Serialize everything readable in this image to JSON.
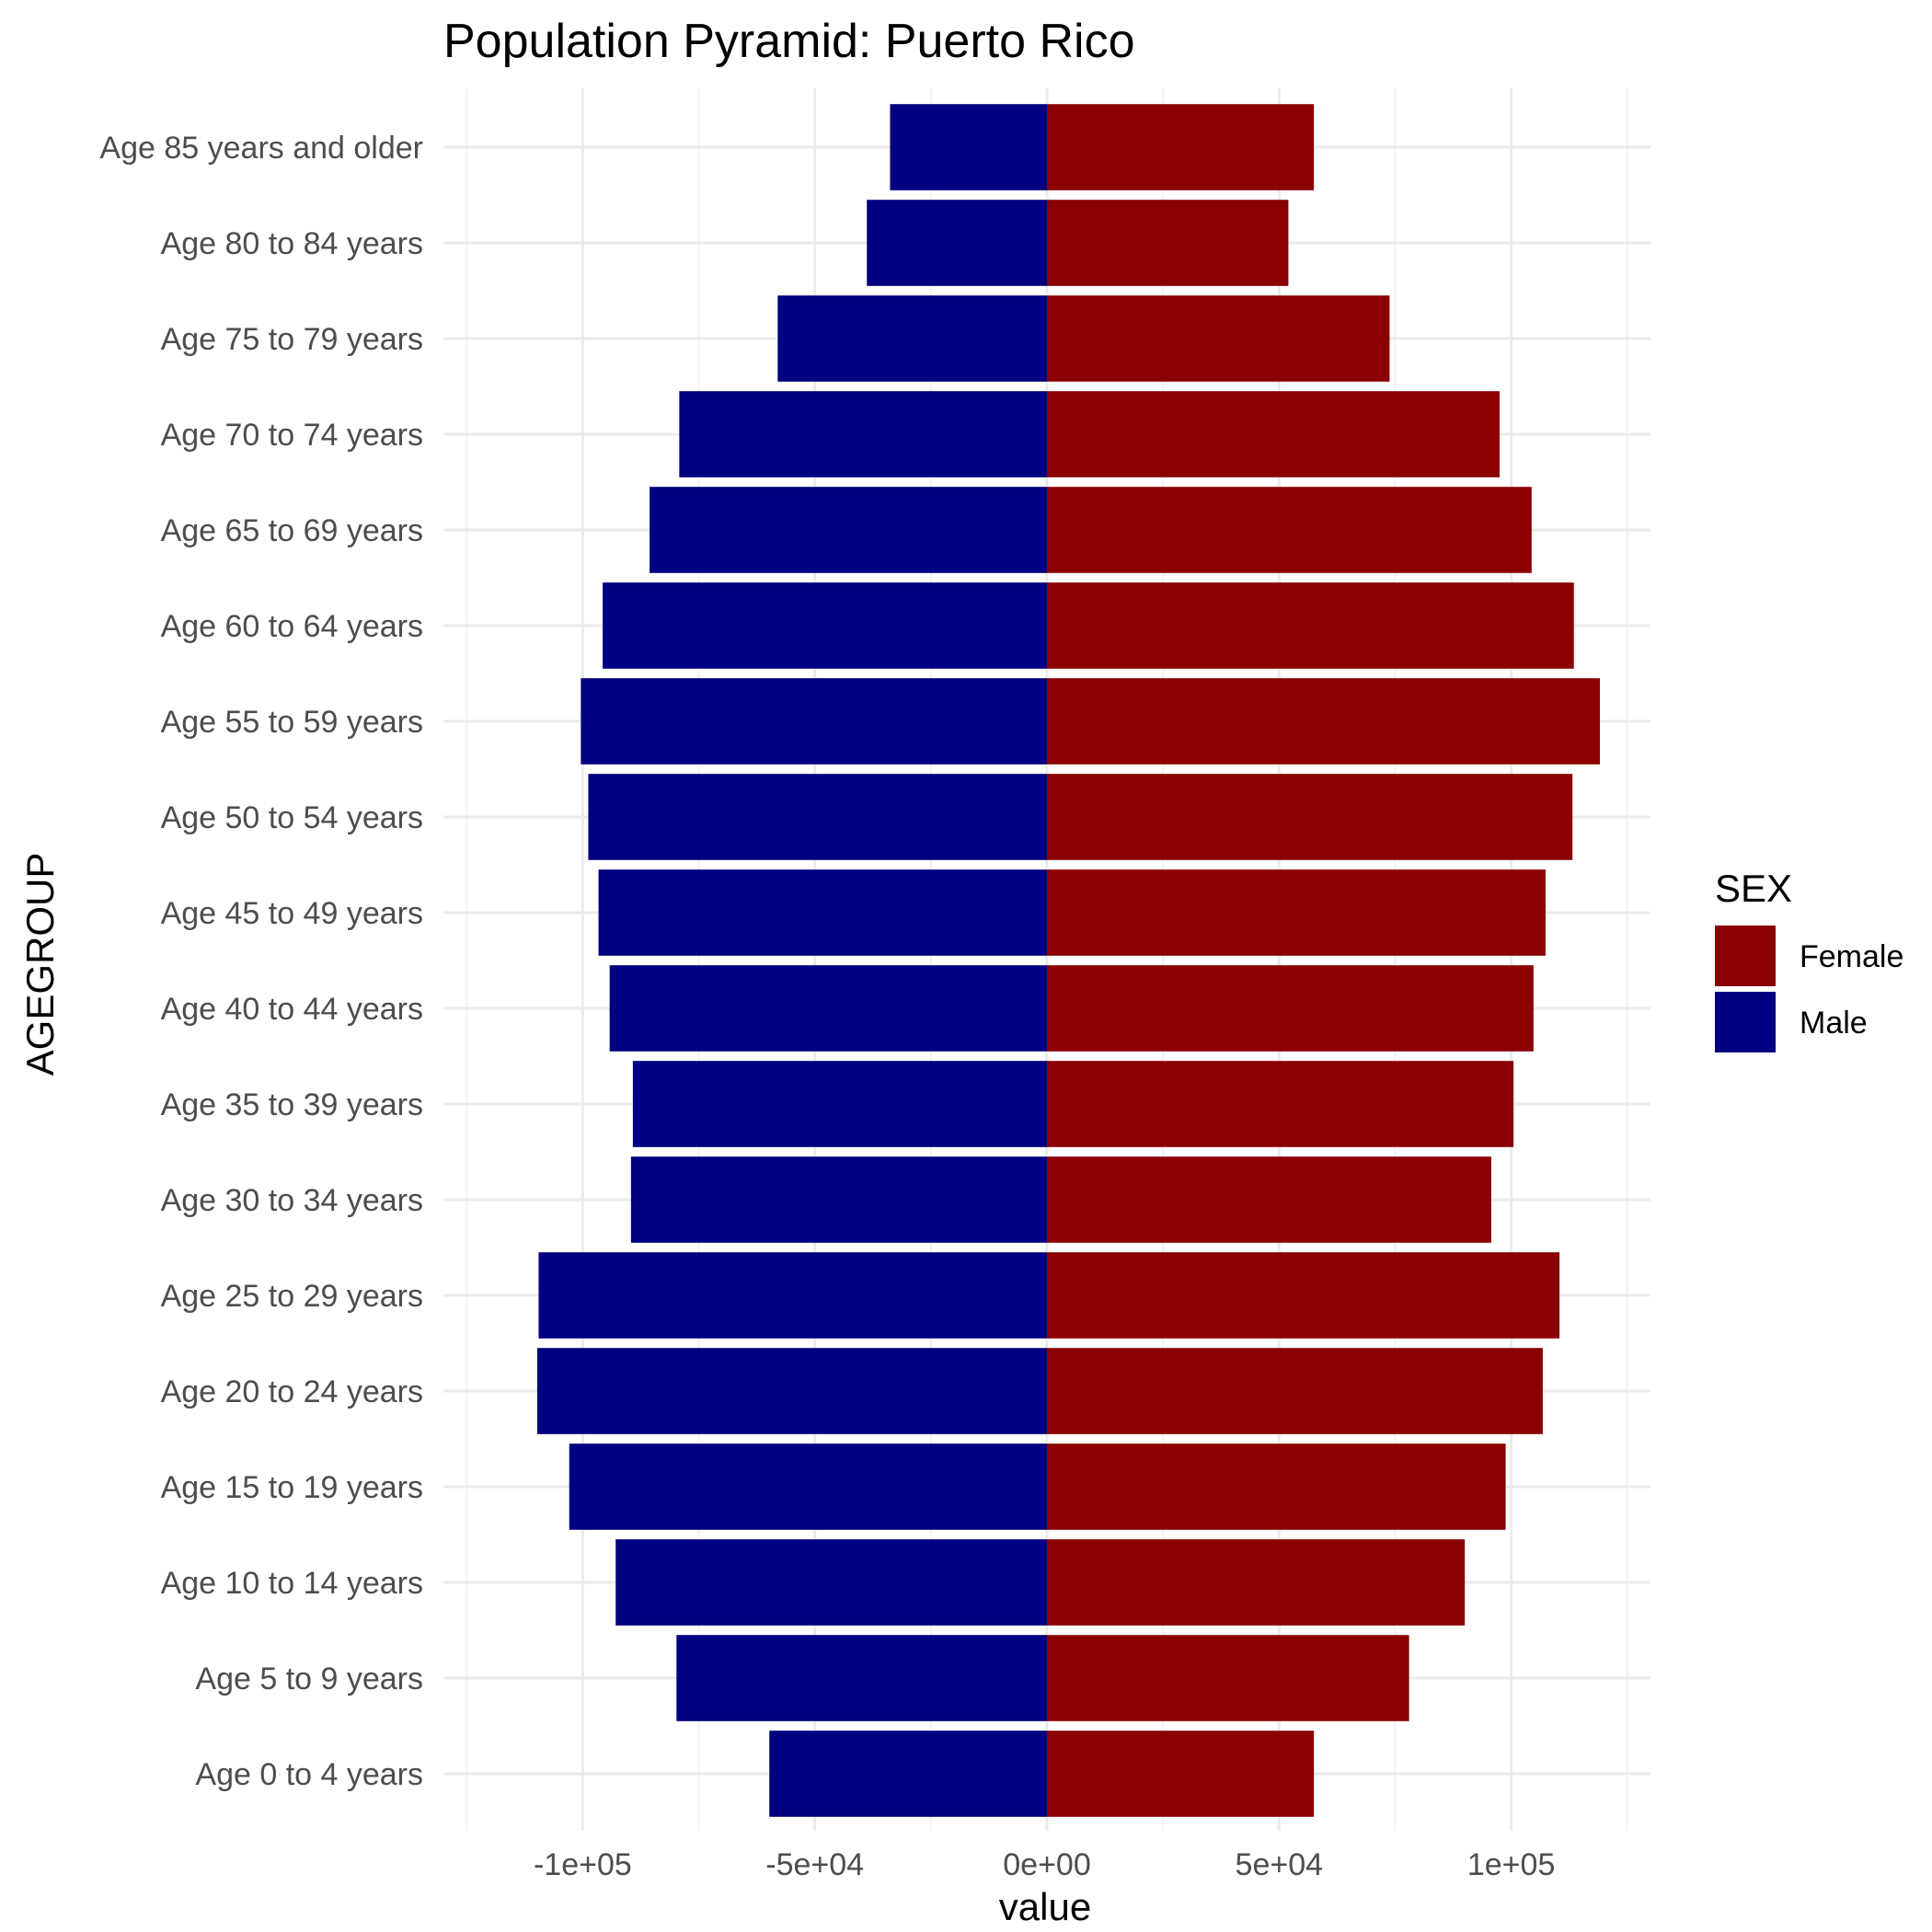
{
  "chart_data": {
    "type": "bar",
    "orientation": "horizontal",
    "title": "Population Pyramid: Puerto Rico",
    "xlabel": "value",
    "ylabel": "AGEGROUP",
    "xlim": [
      -130000,
      130000
    ],
    "x_ticks": [
      -100000,
      -50000,
      0,
      50000,
      100000
    ],
    "x_tick_labels": [
      "-1e+05",
      "-5e+04",
      "0e+00",
      "5e+04",
      "1e+05"
    ],
    "grid": true,
    "legend": {
      "title": "SEX",
      "placement": "right"
    },
    "categories": [
      "Age 0 to 4 years",
      "Age 5 to 9 years",
      "Age 10 to 14 years",
      "Age 15 to 19 years",
      "Age 20 to 24 years",
      "Age 25 to 29 years",
      "Age 30 to 34 years",
      "Age 35 to 39 years",
      "Age 40 to 44 years",
      "Age 45 to 49 years",
      "Age 50 to 54 years",
      "Age 55 to 59 years",
      "Age 60 to 64 years",
      "Age 65 to 69 years",
      "Age 70 to 74 years",
      "Age 75 to 79 years",
      "Age 80 to 84 years",
      "Age 85 years and older"
    ],
    "series": [
      {
        "name": "Female",
        "color": "#8b0000",
        "values": [
          57500,
          78000,
          90000,
          98800,
          106800,
          110400,
          95700,
          100500,
          104800,
          107400,
          113200,
          119100,
          113500,
          104400,
          97500,
          73800,
          52000,
          57500
        ]
      },
      {
        "name": "Male",
        "color": "#000080",
        "values": [
          -59800,
          -79800,
          -92900,
          -102900,
          -109800,
          -109500,
          -89600,
          -89200,
          -94200,
          -96600,
          -98800,
          -100400,
          -95700,
          -85600,
          -79200,
          -58000,
          -38800,
          -33800
        ]
      }
    ]
  }
}
